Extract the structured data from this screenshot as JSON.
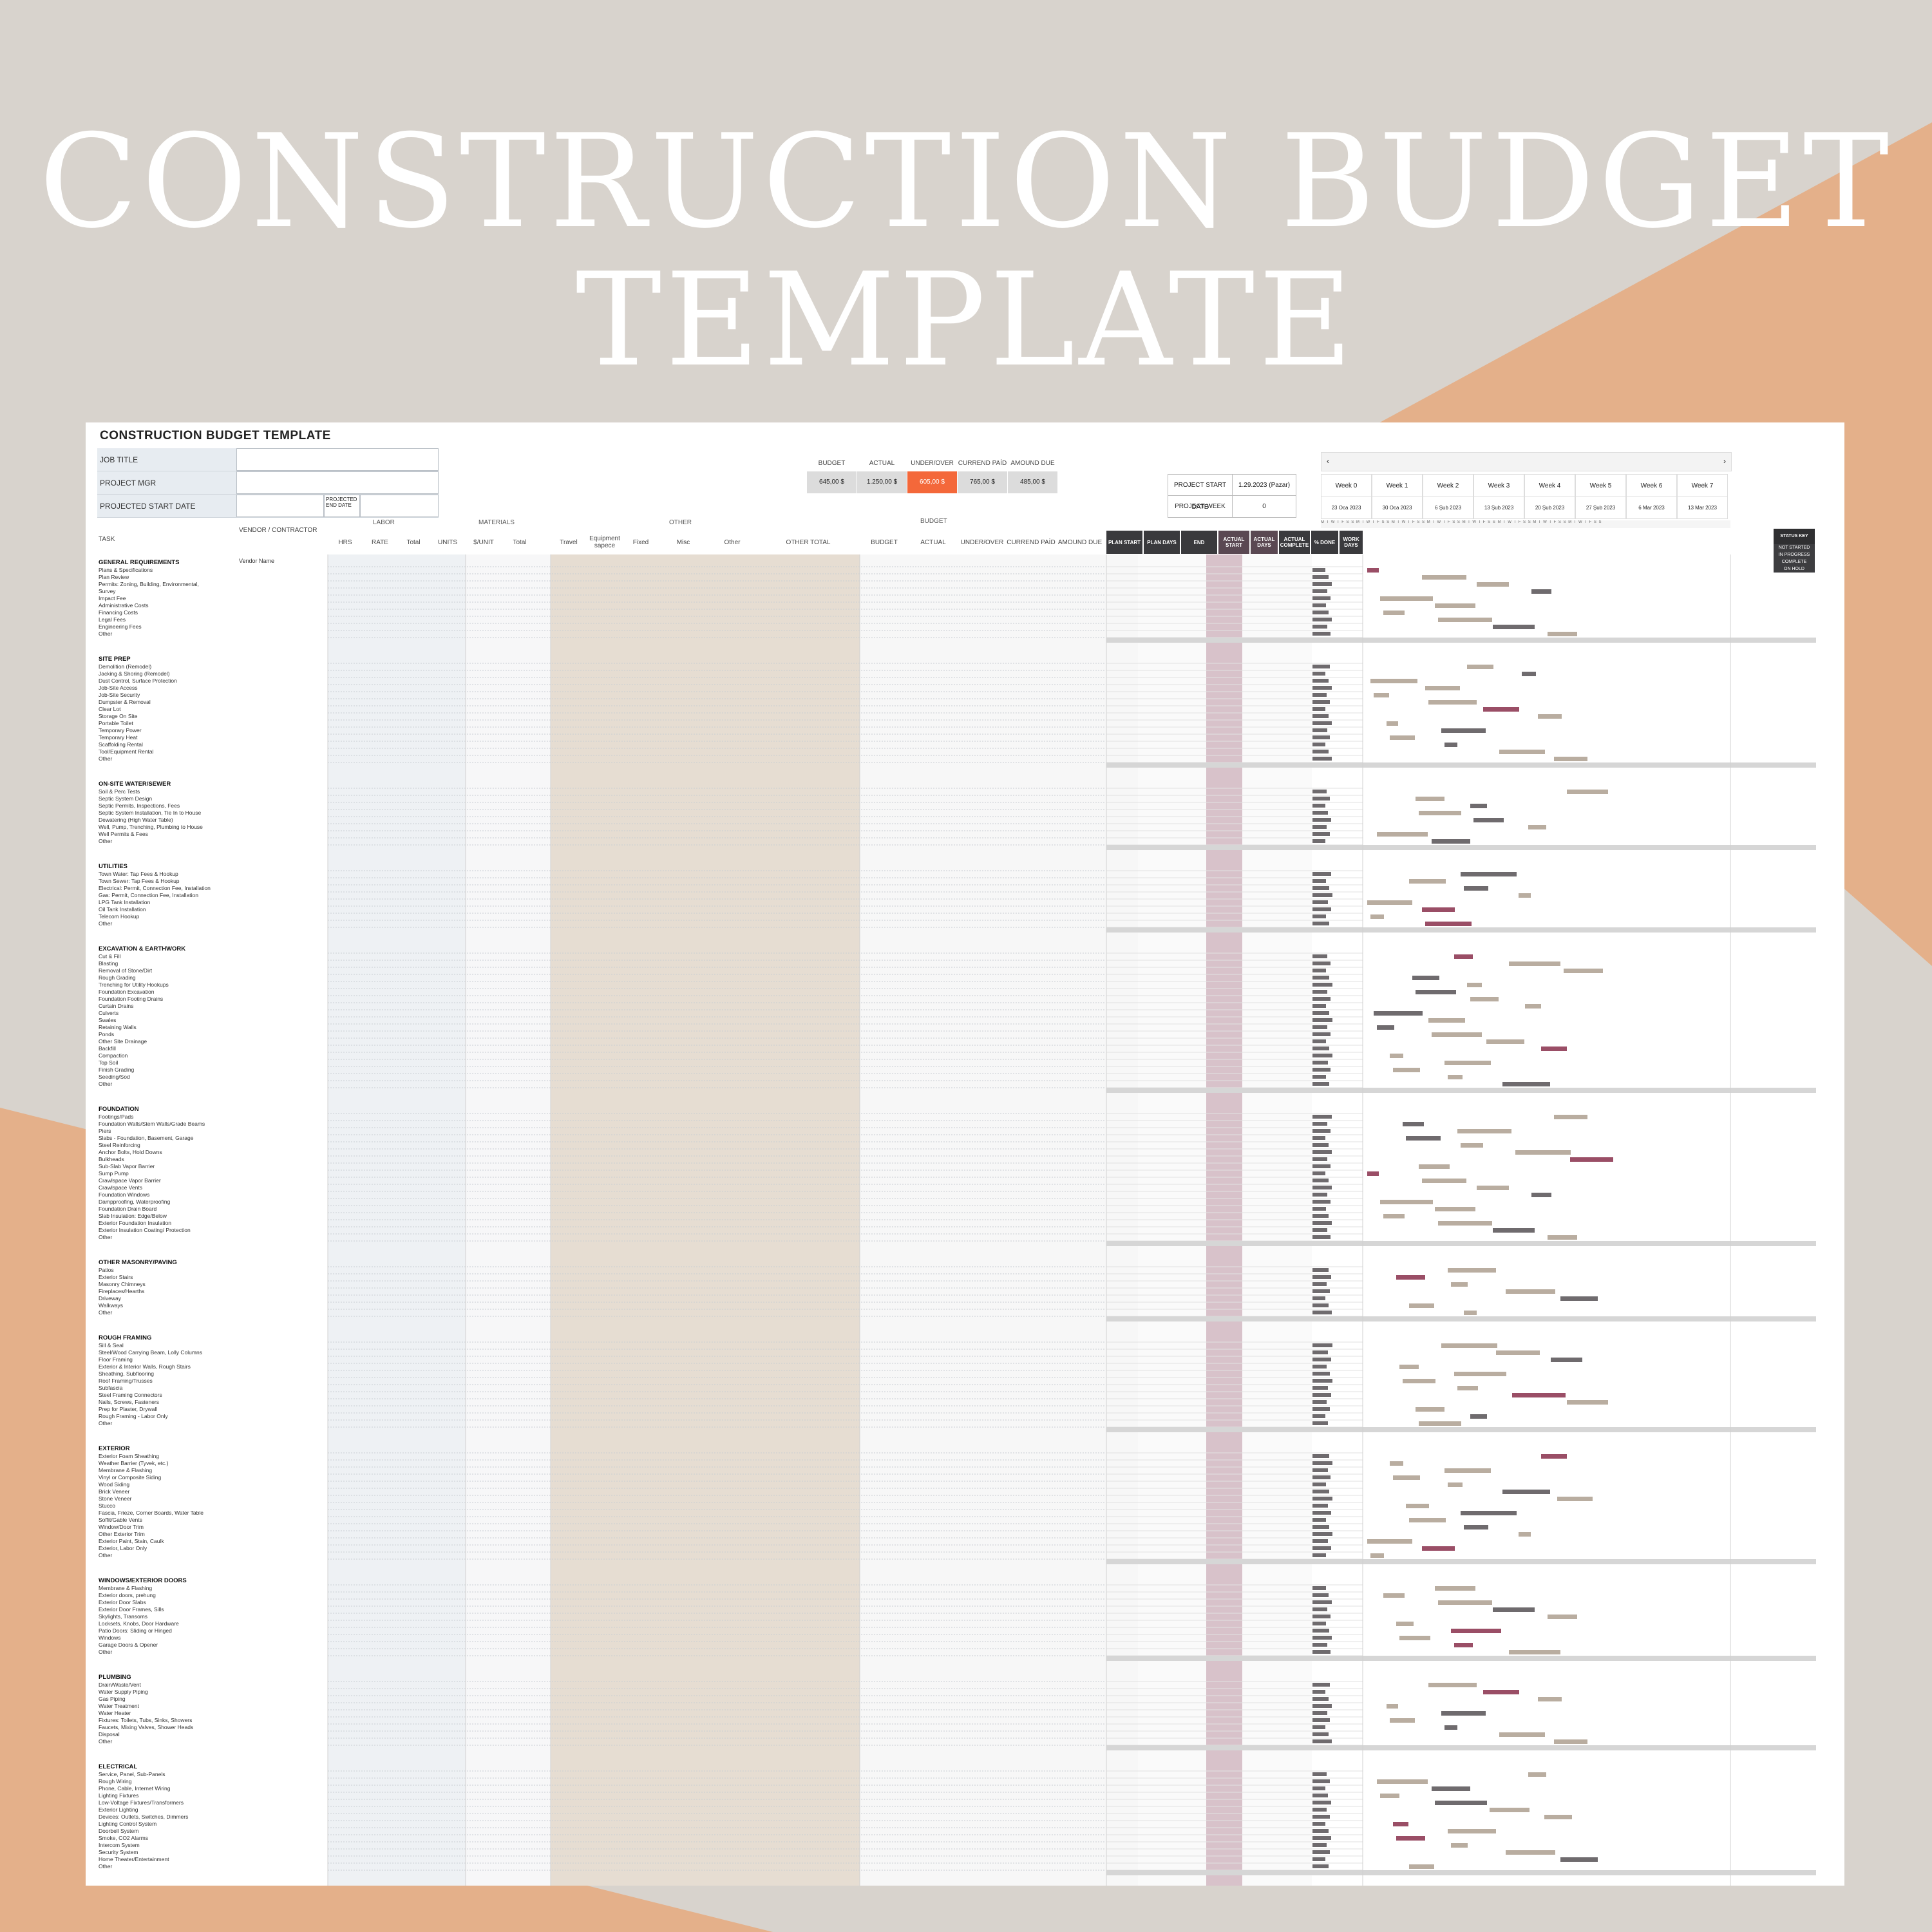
{
  "hero": {
    "line1": "CONSTRUCTION BUDGET",
    "line2": "TEMPLATE"
  },
  "sheet": {
    "title": "CONSTRUCTION BUDGET TEMPLATE",
    "info_rows": [
      {
        "label": "JOB TITLE",
        "value": ""
      },
      {
        "label": "PROJECT MGR",
        "value": ""
      },
      {
        "label": "PROJECTED START DATE",
        "value": ""
      }
    ],
    "projected_end_label": "PROJECTED END DATE",
    "summary": [
      {
        "label": "BUDGET",
        "value": "645,00 $"
      },
      {
        "label": "ACTUAL",
        "value": "1.250,00 $"
      },
      {
        "label": "UNDER/OVER",
        "value": "605,00 $"
      },
      {
        "label": "CURREND PAİD",
        "value": "765,00 $"
      },
      {
        "label": "AMOUND DUE",
        "value": "485,00 $"
      }
    ],
    "project_start": {
      "label": "PROJECT START DATE",
      "value": "1.29.2023 (Pazar)"
    },
    "project_week": {
      "label": "PROJECT WEEK",
      "value": "0"
    },
    "calendar_nav": {
      "prev": "‹",
      "next": "›"
    },
    "weeks": [
      {
        "name": "Week 0",
        "date": "23 Oca 2023"
      },
      {
        "name": "Week 1",
        "date": "30 Oca 2023"
      },
      {
        "name": "Week 2",
        "date": "6 Şub 2023"
      },
      {
        "name": "Week 3",
        "date": "13 Şub 2023"
      },
      {
        "name": "Week 4",
        "date": "20 Şub 2023"
      },
      {
        "name": "Week 5",
        "date": "27 Şub 2023"
      },
      {
        "name": "Week 6",
        "date": "6 Mar 2023"
      },
      {
        "name": "Week 7",
        "date": "13 Mar 2023"
      }
    ],
    "day_letters": "M T W T F S S M T W T F S S M T W T F S S M T W T F S S M T W T F S S M T W T F S S M T W T F S S M T W T F S S",
    "groups": {
      "labor": "LABOR",
      "materials": "MATERIALS",
      "other": "OTHER",
      "budget": "BUDGET"
    },
    "task_label": "TASK",
    "vendor_label": "VENDOR / CONTRACTOR",
    "vendor_name": "Vendor Name",
    "columns": {
      "hrs": "HRS",
      "rate": "RATE",
      "labor_total": "Total",
      "units": "UNITS",
      "per_unit": "$/UNIT",
      "mat_total": "Total",
      "travel": "Travel",
      "equipment": "Equipment sapece",
      "fixed": "Fixed",
      "misc": "Misc",
      "other": "Other",
      "other_total": "OTHER TOTAL",
      "budget": "BUDGET",
      "actual": "ACTUAL",
      "under_over": "UNDER/OVER",
      "current_paid": "CURREND PAİD",
      "amound_due": "AMOUND DUE",
      "plan_start": "PLAN START",
      "plan_days": "PLAN DAYS",
      "end": "END",
      "actual_start": "ACTUAL START",
      "actual_days": "ACTUAL DAYS",
      "actual_complete": "ACTUAL COMPLETE",
      "pct_done": "% DONE",
      "work_days": "WORK DAYS"
    },
    "status_key": {
      "title": "STATUS KEY",
      "items": [
        "NOT STARTED",
        "IN PROGRESS",
        "COMPLETE",
        "ON HOLD"
      ]
    },
    "sections": [
      {
        "title": "GENERAL REQUIREMENTS",
        "items": [
          "Plans & Specifications",
          "Plan Review",
          "Permits: Zoning, Building, Environmental,",
          "Survey",
          "Impact Fee",
          "Administrative Costs",
          "Financing Costs",
          "Legal Fees",
          "Engineering Fees",
          "Other"
        ]
      },
      {
        "title": "SITE PREP",
        "items": [
          "Demolition (Remodel)",
          "Jacking & Shoring (Remodel)",
          "Dust Control, Surface Protection",
          "Job-Site Access",
          "Job-Site Security",
          "Dumpster & Removal",
          "Clear Lot",
          "Storage On Site",
          "Portable Toilet",
          "Temporary Power",
          "Temporary Heat",
          "Scaffolding Rental",
          "Tool/Equipment Rental",
          "Other"
        ]
      },
      {
        "title": "ON-SITE WATER/SEWER",
        "items": [
          "Soil & Perc Tests",
          "Septic System Design",
          "Septic Permits, Inspections, Fees",
          "Septic System Installation, Tie In to House",
          "Dewatering (High Water Table)",
          "Well, Pump, Trenching, Plumbing to House",
          "Well Permits & Fees",
          "Other"
        ]
      },
      {
        "title": "UTILITIES",
        "items": [
          "Town Water: Tap Fees & Hookup",
          "Town Sewer: Tap Fees & Hookup",
          "Electrical: Permit, Connection Fee, Installation",
          "Gas: Permit, Connection Fee, Installation",
          "LPG Tank Installation",
          "Oil Tank Installation",
          "Telecom Hookup",
          "Other"
        ]
      },
      {
        "title": "EXCAVATION & EARTHWORK",
        "items": [
          "Cut & Fill",
          "Blasting",
          "Removal of Stone/Dirt",
          "Rough Grading",
          "Trenching for Utility Hookups",
          "Foundation Excavation",
          "Foundation Footing Drains",
          "Curtain Drains",
          "Culverts",
          "Swales",
          "Retaining Walls",
          "Ponds",
          "Other Site Drainage",
          "Backfill",
          "Compaction",
          "Top Soil",
          "Finish Grading",
          "Seeding/Sod",
          "Other"
        ]
      },
      {
        "title": "FOUNDATION",
        "items": [
          "Footings/Pads",
          "Foundation Walls/Stem Walls/Grade Beams",
          "Piers",
          "Slabs - Foundation, Basement, Garage",
          "Steel Reinforcing",
          "Anchor Bolts, Hold Downs",
          "Bulkheads",
          "Sub-Slab Vapor Barrier",
          "Sump Pump",
          "Crawlspace Vapor Barrier",
          "Crawlspace Vents",
          "Foundation Windows",
          "Dampproofing, Waterproofing",
          "Foundation Drain Board",
          "Slab Insulation: Edge/Below",
          "Exterior Foundation Insulation",
          "Exterior Insulation Coating/ Protection",
          "Other"
        ]
      },
      {
        "title": "OTHER MASONRY/PAVING",
        "items": [
          "Patios",
          "Exterior Stairs",
          "Masonry Chimneys",
          "Fireplaces/Hearths",
          "Driveway",
          "Walkways",
          "Other"
        ]
      },
      {
        "title": "ROUGH FRAMING",
        "items": [
          "Sill & Seal",
          "Steel/Wood Carrying Beam, Lolly Columns",
          "Floor Framing",
          "Exterior & Interior Walls, Rough Stairs",
          "Sheathing, Subflooring",
          "Roof Framing/Trusses",
          "Subfascia",
          "Steel Framing Connectors",
          "Nails, Screws, Fasteners",
          "Prep for Plaster, Drywall",
          "Rough Framing - Labor Only",
          "Other"
        ]
      },
      {
        "title": "EXTERIOR",
        "items": [
          "Exterior Foam Sheathing",
          "Weather Barrier (Tyvek, etc.)",
          "Membrane & Flashing",
          "Vinyl or Composite Siding",
          "Wood Siding",
          "Brick Veneer",
          "Stone Veneer",
          "Stucco",
          "Fascia, Frieze, Corner Boards, Water Table",
          "Soffit/Gable Vents",
          "Window/Door Trim",
          "Other Exterior Trim",
          "Exterior Paint, Stain, Caulk",
          "Exterior, Labor Only",
          "Other"
        ]
      },
      {
        "title": "WINDOWS/EXTERIOR DOORS",
        "items": [
          "Membrane & Flashing",
          "Exterior doors, prehung",
          "Exterior Door Slabs",
          "Exterior Door Frames, Sills",
          "Skylights, Transoms",
          "Locksets, Knobs, Door Hardware",
          "Patio Doors: Sliding or Hinged",
          "Windows",
          "Garage Doors & Opener",
          "Other"
        ]
      },
      {
        "title": "PLUMBING",
        "items": [
          "Drain/Waste/Vent",
          "Water Supply Piping",
          "Gas Piping",
          "Water Treatment",
          "Water Heater",
          "Fixtures: Toilets, Tubs, Sinks, Showers",
          "Faucets, Mixing Valves, Shower Heads",
          "Disposal",
          "Other"
        ]
      },
      {
        "title": "ELECTRICAL",
        "items": [
          "Service, Panel, Sub-Panels",
          "Rough Wiring",
          "Phone, Cable, Internet Wiring",
          "Lighting Fixtures",
          "Low-Voltage Fixtures/Transformers",
          "Exterior Lighting",
          "Devices: Outlets, Switches, Dimmers",
          "Lighting Control System",
          "Doorbell System",
          "Smoke, CO2 Alarms",
          "Intercom System",
          "Security System",
          "Home Theater/Entertainment",
          "Other"
        ]
      }
    ]
  },
  "colors": {
    "accent_orange": "#f4683a",
    "peach": "#e4b08a",
    "mauve": "#d8c2ca",
    "bar_dark": "#6f6b6e",
    "bar_tan": "#b9ada0",
    "bar_plum": "#9a4e66"
  }
}
